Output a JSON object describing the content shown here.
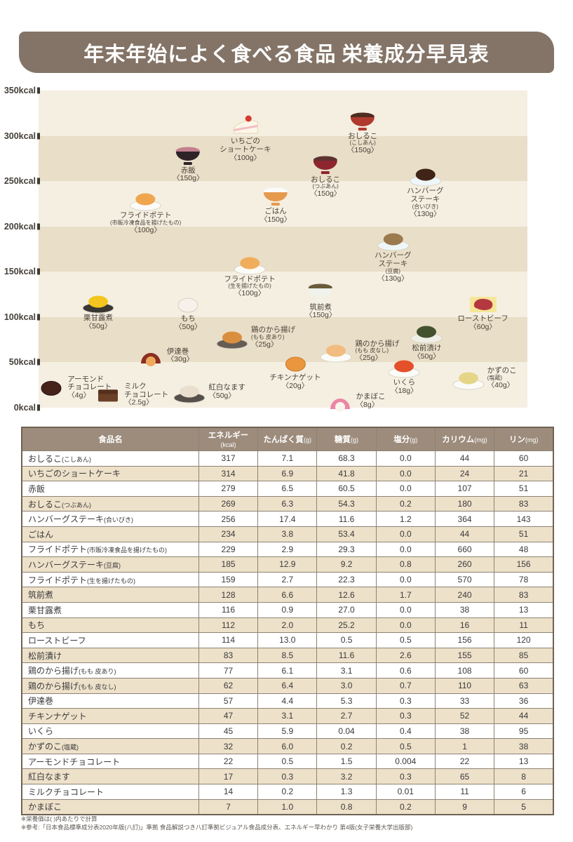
{
  "page": {
    "title": "年末年始によく食べる食品 栄養成分早見表"
  },
  "colors": {
    "banner_bg": "#847467",
    "banner_text": "#ffffff",
    "stripe_light": "#f5efe2",
    "stripe_dark": "#e9dec7",
    "table_header_bg": "#9d8c7c",
    "table_row_alt": "#eee1ca",
    "grid_line": "#8d8274",
    "text_dark": "#3a3a3a"
  },
  "chart_data": {
    "type": "scatter",
    "title": "年末年始によく食べる食品 栄養成分早見表",
    "ylabel": "kcal",
    "ylim": [
      0,
      350
    ],
    "grid": "banded-stripes",
    "yticks": [
      "350kcal",
      "300kcal",
      "250kcal",
      "200kcal",
      "150kcal",
      "100kcal",
      "50kcal",
      "0kcal"
    ],
    "points": [
      {
        "id": "oshiruko-koshian",
        "lines": [
          "おしるこ"
        ],
        "sub": "(こしあん)",
        "amount": "〈150g〉",
        "kcal": 317,
        "x_pct": 66.3,
        "label_pos": "below",
        "icon": "bowl",
        "c0": "#b03a2e",
        "c1": "#4f2d20"
      },
      {
        "id": "strawberry-shortcake",
        "lines": [
          "いちごの",
          "ショートケーキ"
        ],
        "sub": "",
        "amount": "〈100g〉",
        "kcal": 314,
        "x_pct": 42.3,
        "label_pos": "below",
        "icon": "cake",
        "c0": "#fdf6e8",
        "c1": "#d6392f"
      },
      {
        "id": "sekihan",
        "lines": [
          "赤飯"
        ],
        "sub": "",
        "amount": "〈150g〉",
        "kcal": 279,
        "x_pct": 30.6,
        "label_pos": "below",
        "icon": "bowl",
        "c0": "#2e2428",
        "c1": "#c2808d"
      },
      {
        "id": "oshiruko-tsubuan",
        "lines": [
          "おしるこ"
        ],
        "sub": "(つぶあん)",
        "amount": "〈150g〉",
        "kcal": 269,
        "x_pct": 58.7,
        "label_pos": "below",
        "icon": "bowl",
        "c0": "#8e2630",
        "c1": "#5d3230"
      },
      {
        "id": "hamburg-steak-aibiki",
        "lines": [
          "ハンバーグ",
          "ステーキ"
        ],
        "sub": "(合いびき)",
        "amount": "〈130g〉",
        "kcal": 256,
        "x_pct": 79.1,
        "label_pos": "below",
        "icon": "plate",
        "c0": "#eef6f8",
        "c1": "#3f2417"
      },
      {
        "id": "gohan",
        "lines": [
          "ごはん"
        ],
        "sub": "",
        "amount": "〈150g〉",
        "kcal": 234,
        "x_pct": 48.5,
        "label_pos": "below",
        "icon": "bowl",
        "c0": "#e59a4e",
        "c1": "#fbfbf9"
      },
      {
        "id": "fried-potato-frozen",
        "lines": [
          "フライドポテト"
        ],
        "sub": "(市販冷凍食品を揚げたもの)",
        "amount": "〈100g〉",
        "kcal": 229,
        "x_pct": 21.9,
        "label_pos": "below",
        "icon": "plate",
        "c0": "#fbfbf8",
        "c1": "#efa64f"
      },
      {
        "id": "hamburg-steak-tofu",
        "lines": [
          "ハンバーグ",
          "ステーキ"
        ],
        "sub": "(豆腐)",
        "amount": "〈130g〉",
        "kcal": 185,
        "x_pct": 72.5,
        "label_pos": "below",
        "icon": "plate",
        "c0": "#eef6f8",
        "c1": "#9b7a4e"
      },
      {
        "id": "fried-potato-raw",
        "lines": [
          "フライドポテト"
        ],
        "sub": "(生を揚げたもの)",
        "amount": "〈100g〉",
        "kcal": 159,
        "x_pct": 43.2,
        "label_pos": "below",
        "icon": "plate",
        "c0": "#fbfbf8",
        "c1": "#f0ad5c"
      },
      {
        "id": "chikuzenni",
        "lines": [
          "筑前煮"
        ],
        "sub": "",
        "amount": "〈150g〉",
        "kcal": 128,
        "x_pct": 57.7,
        "label_pos": "below",
        "icon": "bowl",
        "c0": "#eff3ec",
        "c1": "#6c5b3a"
      },
      {
        "id": "kuri-kanroni",
        "lines": [
          "栗甘露煮"
        ],
        "sub": "",
        "amount": "〈50g〉",
        "kcal": 116,
        "x_pct": 12.2,
        "label_pos": "below",
        "icon": "plate",
        "c0": "#3a3632",
        "c1": "#f4c41f"
      },
      {
        "id": "mochi",
        "lines": [
          "もち"
        ],
        "sub": "",
        "amount": "〈50g〉",
        "kcal": 112,
        "x_pct": 30.6,
        "label_pos": "below",
        "icon": "blob",
        "c0": "#f6f1ea",
        "c1": "#d9cfc2"
      },
      {
        "id": "roast-beef",
        "lines": [
          "ローストビーフ"
        ],
        "sub": "",
        "amount": "〈60g〉",
        "kcal": 114,
        "x_pct": 90.9,
        "label_pos": "below",
        "icon": "meat",
        "c0": "#b5383f",
        "c1": "#f6e69a"
      },
      {
        "id": "matsumaezuke",
        "lines": [
          "松前漬け"
        ],
        "sub": "",
        "amount": "〈50g〉",
        "kcal": 83,
        "x_pct": 79.4,
        "label_pos": "below",
        "icon": "plate",
        "c0": "#efefe8",
        "c1": "#44512e"
      },
      {
        "id": "karaage-skin-on",
        "lines": [
          "鶏のから揚げ"
        ],
        "sub": "(もも 皮あり)",
        "amount": "〈25g〉",
        "kcal": 77,
        "x_pct": 39.6,
        "label_pos": "right",
        "icon": "plate",
        "c0": "#655c55",
        "c1": "#d98f3f"
      },
      {
        "id": "karaage-skin-off",
        "lines": [
          "鶏のから揚げ"
        ],
        "sub": "(もも 皮なし)",
        "amount": "〈25g〉",
        "kcal": 62,
        "x_pct": 60.9,
        "label_pos": "right",
        "icon": "plate",
        "c0": "#fbfbf8",
        "c1": "#f2bc80"
      },
      {
        "id": "datemaki",
        "lines": [
          "伊達巻"
        ],
        "sub": "",
        "amount": "〈30g〉",
        "kcal": 57,
        "x_pct": 23.5,
        "label_pos": "right",
        "icon": "semi",
        "c0": "#8a2f22",
        "c1": "#f0a95c"
      },
      {
        "id": "chicken-nugget",
        "lines": [
          "チキンナゲット"
        ],
        "sub": "",
        "amount": "〈20g〉",
        "kcal": 47,
        "x_pct": 52.5,
        "label_pos": "below",
        "icon": "blob",
        "c0": "#e9963e",
        "c1": "#c97a2c"
      },
      {
        "id": "ikura",
        "lines": [
          "いくら"
        ],
        "sub": "",
        "amount": "〈18g〉",
        "kcal": 45,
        "x_pct": 74.8,
        "label_pos": "below",
        "icon": "plate",
        "c0": "#fbfbf8",
        "c1": "#e4502a"
      },
      {
        "id": "kazunoko",
        "lines": [
          "かずのこ"
        ],
        "sub": "(塩蔵)",
        "amount": "〈40g〉",
        "kcal": 32,
        "x_pct": 87.9,
        "label_pos": "right",
        "icon": "plate",
        "c0": "#fbfbf8",
        "c1": "#e5d687"
      },
      {
        "id": "almond-chocolate",
        "lines": [
          "アーモンド",
          "チョコレート"
        ],
        "sub": "",
        "amount": "〈4g〉",
        "kcal": 22,
        "x_pct": 3.2,
        "label_pos": "right",
        "icon": "blob",
        "c0": "#45221a",
        "c1": "#2e1510"
      },
      {
        "id": "kohaku-namasu",
        "lines": [
          "紅白なます"
        ],
        "sub": "",
        "amount": "〈50g〉",
        "kcal": 17,
        "x_pct": 30.9,
        "label_pos": "right",
        "icon": "plate",
        "c0": "#57504a",
        "c1": "#eadfce"
      },
      {
        "id": "milk-chocolate",
        "lines": [
          "ミルク",
          "チョコレート"
        ],
        "sub": "",
        "amount": "〈2.5g〉",
        "kcal": 14,
        "x_pct": 14.8,
        "label_pos": "right",
        "icon": "bar",
        "c0": "#6a4026",
        "c1": "#55301c"
      },
      {
        "id": "kamaboko",
        "lines": [
          "かまぼこ"
        ],
        "sub": "",
        "amount": "〈8g〉",
        "kcal": 7,
        "x_pct": 62.2,
        "label_pos": "right",
        "icon": "semi",
        "c0": "#ec86a4",
        "c1": "#faf4ef"
      }
    ]
  },
  "table": {
    "columns": [
      {
        "label": "食品名",
        "unit": ""
      },
      {
        "label": "エネルギー",
        "unit": "(kcal)"
      },
      {
        "label": "たんぱく質",
        "unit": "(g)"
      },
      {
        "label": "糖質",
        "unit": "(g)"
      },
      {
        "label": "塩分",
        "unit": "(g)"
      },
      {
        "label": "カリウム",
        "unit": "(mg)"
      },
      {
        "label": "リン",
        "unit": "(mg)"
      }
    ],
    "rows": [
      {
        "name": "おしるこ",
        "name_sub": "(こしあん)",
        "values": [
          "317",
          "7.1",
          "68.3",
          "0.0",
          "44",
          "60"
        ]
      },
      {
        "name": "いちごのショートケーキ",
        "name_sub": "",
        "values": [
          "314",
          "6.9",
          "41.8",
          "0.0",
          "24",
          "21"
        ]
      },
      {
        "name": "赤飯",
        "name_sub": "",
        "values": [
          "279",
          "6.5",
          "60.5",
          "0.0",
          "107",
          "51"
        ]
      },
      {
        "name": "おしるこ",
        "name_sub": "(つぶあん)",
        "values": [
          "269",
          "6.3",
          "54.3",
          "0.2",
          "180",
          "83"
        ]
      },
      {
        "name": "ハンバーグステーキ",
        "name_sub": "(合いびき)",
        "values": [
          "256",
          "17.4",
          "11.6",
          "1.2",
          "364",
          "143"
        ]
      },
      {
        "name": "ごはん",
        "name_sub": "",
        "values": [
          "234",
          "3.8",
          "53.4",
          "0.0",
          "44",
          "51"
        ]
      },
      {
        "name": "フライドポテト",
        "name_sub": "(市販冷凍食品を揚げたもの)",
        "values": [
          "229",
          "2.9",
          "29.3",
          "0.0",
          "660",
          "48"
        ]
      },
      {
        "name": "ハンバーグステーキ",
        "name_sub": "(豆腐)",
        "values": [
          "185",
          "12.9",
          "9.2",
          "0.8",
          "260",
          "156"
        ]
      },
      {
        "name": "フライドポテト",
        "name_sub": "(生を揚げたもの)",
        "values": [
          "159",
          "2.7",
          "22.3",
          "0.0",
          "570",
          "78"
        ]
      },
      {
        "name": "筑前煮",
        "name_sub": "",
        "values": [
          "128",
          "6.6",
          "12.6",
          "1.7",
          "240",
          "83"
        ]
      },
      {
        "name": "栗甘露煮",
        "name_sub": "",
        "values": [
          "116",
          "0.9",
          "27.0",
          "0.0",
          "38",
          "13"
        ]
      },
      {
        "name": "もち",
        "name_sub": "",
        "values": [
          "112",
          "2.0",
          "25.2",
          "0.0",
          "16",
          "11"
        ]
      },
      {
        "name": "ローストビーフ",
        "name_sub": "",
        "values": [
          "114",
          "13.0",
          "0.5",
          "0.5",
          "156",
          "120"
        ]
      },
      {
        "name": "松前漬け",
        "name_sub": "",
        "values": [
          "83",
          "8.5",
          "11.6",
          "2.6",
          "155",
          "85"
        ]
      },
      {
        "name": "鶏のから揚げ",
        "name_sub": "(もも 皮あり)",
        "values": [
          "77",
          "6.1",
          "3.1",
          "0.6",
          "108",
          "60"
        ]
      },
      {
        "name": "鶏のから揚げ",
        "name_sub": "(もも 皮なし)",
        "values": [
          "62",
          "6.4",
          "3.0",
          "0.7",
          "110",
          "63"
        ]
      },
      {
        "name": "伊達巻",
        "name_sub": "",
        "values": [
          "57",
          "4.4",
          "5.3",
          "0.3",
          "33",
          "36"
        ]
      },
      {
        "name": "チキンナゲット",
        "name_sub": "",
        "values": [
          "47",
          "3.1",
          "2.7",
          "0.3",
          "52",
          "44"
        ]
      },
      {
        "name": "いくら",
        "name_sub": "",
        "values": [
          "45",
          "5.9",
          "0.04",
          "0.4",
          "38",
          "95"
        ]
      },
      {
        "name": "かずのこ",
        "name_sub": "(塩蔵)",
        "values": [
          "32",
          "6.0",
          "0.2",
          "0.5",
          "1",
          "38"
        ]
      },
      {
        "name": "アーモンドチョコレート",
        "name_sub": "",
        "values": [
          "22",
          "0.5",
          "1.5",
          "0.004",
          "22",
          "13"
        ]
      },
      {
        "name": "紅白なます",
        "name_sub": "",
        "values": [
          "17",
          "0.3",
          "3.2",
          "0.3",
          "65",
          "8"
        ]
      },
      {
        "name": "ミルクチョコレート",
        "name_sub": "",
        "values": [
          "14",
          "0.2",
          "1.3",
          "0.01",
          "11",
          "6"
        ]
      },
      {
        "name": "かまぼこ",
        "name_sub": "",
        "values": [
          "7",
          "1.0",
          "0.8",
          "0.2",
          "9",
          "5"
        ]
      }
    ]
  },
  "footnotes": [
    "※栄養価は( )内あたりで計算",
    "※参考:「日本食品標準成分表2020年版(八訂)」準拠 食品解説つき八訂準拠ビジュアル食品成分表、エネルギー早わかり 第4版(女子栄養大学出版部)"
  ]
}
